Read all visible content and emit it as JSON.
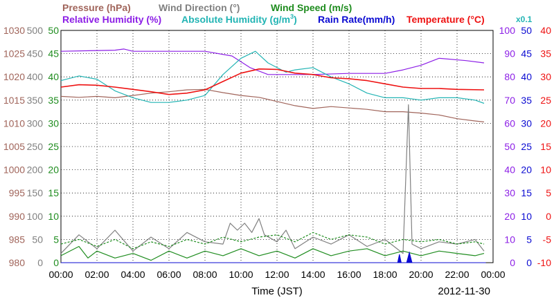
{
  "chart_data": {
    "type": "line",
    "xlabel": "Time (JST)",
    "date": "2012-11-30",
    "x_ticks": [
      "00:00",
      "02:00",
      "04:00",
      "06:00",
      "08:00",
      "10:00",
      "12:00",
      "14:00",
      "16:00",
      "18:00",
      "20:00",
      "22:00",
      "00:00"
    ],
    "grid": true,
    "axes": {
      "pressure": {
        "label": "Pressure (hPa)",
        "range": [
          980,
          1030
        ],
        "ticks": [
          "1030",
          "1025",
          "1020",
          "1015",
          "1010",
          "1005",
          "1000",
          "995",
          "990",
          "985",
          "980"
        ],
        "color": "#a0645a"
      },
      "wind_direction": {
        "label": "Wind Direction (°)",
        "range": [
          0,
          500
        ],
        "ticks": [
          "500",
          "450",
          "400",
          "350",
          "300",
          "250",
          "200",
          "150",
          "100",
          "50",
          "0"
        ],
        "color": "#808080"
      },
      "wind_speed": {
        "label": "Wind Speed (m/s)",
        "range": [
          0,
          50
        ],
        "ticks": [
          "50",
          "45",
          "40",
          "35",
          "30",
          "25",
          "20",
          "15",
          "10",
          "5",
          "0"
        ],
        "color": "#1e8c1e"
      },
      "relative_humidity": {
        "label": "Relative Humidity (%)",
        "range": [
          0,
          100
        ],
        "ticks": [
          "100",
          "90",
          "80",
          "70",
          "60",
          "50",
          "40",
          "30",
          "20",
          "10",
          "0"
        ],
        "color": "#8c1ee6"
      },
      "absolute_humidity": {
        "label_main": "Absolute Humidity (g/m",
        "label_sup": "3",
        "label_end": ")",
        "scale_note": "x0.1",
        "range": [
          0,
          50
        ],
        "ticks": [
          "50",
          "45",
          "40",
          "35",
          "30",
          "25",
          "20",
          "15",
          "10",
          "5",
          "0"
        ],
        "color": "#22b4b4"
      },
      "rain_rate": {
        "label": "Rain Rate(mm/h)",
        "range": [
          0,
          50
        ],
        "ticks": [
          "50",
          "45",
          "40",
          "35",
          "30",
          "25",
          "20",
          "15",
          "10",
          "5",
          "0"
        ],
        "color": "#0a0ad2"
      },
      "temperature": {
        "label": "Temperature (°C)",
        "range": [
          -10,
          40
        ],
        "ticks": [
          "40",
          "35",
          "30",
          "25",
          "20",
          "15",
          "10",
          "5",
          "0",
          "-5",
          "-10"
        ],
        "color": "#ee1111"
      }
    },
    "series": [
      {
        "key": "pressure",
        "color": "#a0645a",
        "points": [
          [
            0,
            1015.8
          ],
          [
            1,
            1015.6
          ],
          [
            2,
            1015.8
          ],
          [
            3,
            1015.5
          ],
          [
            4,
            1016.0
          ],
          [
            5,
            1016.5
          ],
          [
            6,
            1016.8
          ],
          [
            7,
            1017.2
          ],
          [
            8,
            1017.3
          ],
          [
            9,
            1016.6
          ],
          [
            10,
            1016.0
          ],
          [
            11,
            1015.6
          ],
          [
            12,
            1014.7
          ],
          [
            13,
            1013.8
          ],
          [
            14,
            1013.2
          ],
          [
            15,
            1013.6
          ],
          [
            16,
            1013.3
          ],
          [
            17,
            1013.0
          ],
          [
            18,
            1012.5
          ],
          [
            19,
            1012.5
          ],
          [
            20,
            1012.2
          ],
          [
            21,
            1011.8
          ],
          [
            22,
            1011.0
          ],
          [
            23,
            1010.5
          ],
          [
            23.5,
            1010.3
          ]
        ]
      },
      {
        "key": "relative_humidity",
        "color": "#8c1ee6",
        "points": [
          [
            0,
            91
          ],
          [
            3,
            91.5
          ],
          [
            3.5,
            92
          ],
          [
            4,
            91
          ],
          [
            8,
            91
          ],
          [
            9.5,
            89
          ],
          [
            10.5,
            84
          ],
          [
            11.5,
            81
          ],
          [
            14,
            81
          ],
          [
            16,
            81.5
          ],
          [
            18,
            81.5
          ],
          [
            19,
            83
          ],
          [
            20,
            85
          ],
          [
            21,
            88
          ],
          [
            22.5,
            87
          ],
          [
            23.5,
            86
          ]
        ]
      },
      {
        "key": "absolute_humidity",
        "color": "#22b4b4",
        "points": [
          [
            0,
            39.2
          ],
          [
            1,
            40.2
          ],
          [
            2,
            39.5
          ],
          [
            3,
            37
          ],
          [
            4,
            35.5
          ],
          [
            5,
            34.5
          ],
          [
            6,
            34.5
          ],
          [
            7,
            35
          ],
          [
            8,
            36
          ],
          [
            9,
            40.5
          ],
          [
            10,
            44
          ],
          [
            10.8,
            45.5
          ],
          [
            11.5,
            43
          ],
          [
            12.5,
            41
          ],
          [
            13,
            41.5
          ],
          [
            14,
            42
          ],
          [
            15,
            40
          ],
          [
            16,
            38.5
          ],
          [
            17,
            36.5
          ],
          [
            18,
            35.5
          ],
          [
            19,
            35.5
          ],
          [
            20,
            35
          ],
          [
            21,
            35.5
          ],
          [
            22,
            35.5
          ],
          [
            23,
            35
          ],
          [
            23.5,
            34.3
          ]
        ]
      },
      {
        "key": "temperature",
        "color": "#ee1111",
        "points": [
          [
            0,
            27.8
          ],
          [
            1,
            28.3
          ],
          [
            2,
            28.2
          ],
          [
            3,
            27.8
          ],
          [
            4,
            27.3
          ],
          [
            5,
            26.8
          ],
          [
            6,
            26.2
          ],
          [
            7,
            26.5
          ],
          [
            8,
            27.2
          ],
          [
            9,
            29.0
          ],
          [
            10,
            30.8
          ],
          [
            11,
            31.7
          ],
          [
            12,
            31.6
          ],
          [
            13,
            30.8
          ],
          [
            14,
            30.5
          ],
          [
            15,
            29.8
          ],
          [
            16,
            29.6
          ],
          [
            17,
            29.2
          ],
          [
            18,
            28.5
          ],
          [
            19,
            27.8
          ],
          [
            20,
            27.5
          ],
          [
            21,
            27.5
          ],
          [
            22,
            27.3
          ],
          [
            23.5,
            27.2
          ]
        ]
      },
      {
        "key": "wind_direction",
        "color": "#808080",
        "points": [
          [
            0,
            20
          ],
          [
            1,
            60
          ],
          [
            2,
            30
          ],
          [
            3,
            70
          ],
          [
            4,
            25
          ],
          [
            5,
            55
          ],
          [
            6,
            30
          ],
          [
            7,
            65
          ],
          [
            8,
            45
          ],
          [
            9,
            40
          ],
          [
            9.4,
            85
          ],
          [
            9.8,
            70
          ],
          [
            10.2,
            85
          ],
          [
            10.6,
            65
          ],
          [
            11,
            95
          ],
          [
            11.3,
            60
          ],
          [
            12,
            45
          ],
          [
            12.5,
            70
          ],
          [
            13,
            30
          ],
          [
            14,
            55
          ],
          [
            15,
            40
          ],
          [
            16,
            60
          ],
          [
            17,
            35
          ],
          [
            18,
            50
          ],
          [
            19,
            20
          ],
          [
            19.3,
            340
          ],
          [
            19.5,
            40
          ],
          [
            20,
            30
          ],
          [
            21,
            45
          ],
          [
            22,
            40
          ],
          [
            23,
            50
          ],
          [
            23.5,
            25
          ]
        ]
      },
      {
        "key": "wind_speed",
        "color": "#1e8c1e",
        "points": [
          [
            0,
            1.5
          ],
          [
            1,
            3.5
          ],
          [
            1.5,
            1
          ],
          [
            2,
            2.5
          ],
          [
            3,
            1
          ],
          [
            4,
            2
          ],
          [
            5,
            0.5
          ],
          [
            6,
            2.5
          ],
          [
            7,
            1
          ],
          [
            8,
            2.5
          ],
          [
            9,
            1.5
          ],
          [
            10,
            3
          ],
          [
            11,
            1.5
          ],
          [
            12,
            2.5
          ],
          [
            13,
            1
          ],
          [
            14,
            3
          ],
          [
            15,
            1.5
          ],
          [
            16,
            2.5
          ],
          [
            17,
            3
          ],
          [
            18,
            1.5
          ],
          [
            19,
            2.5
          ],
          [
            20,
            1.5
          ],
          [
            21,
            2.5
          ],
          [
            22,
            2
          ],
          [
            23,
            1.5
          ],
          [
            23.5,
            2
          ]
        ]
      },
      {
        "key": "wind_speed_max",
        "color": "#1e8c1e",
        "dashed": true,
        "points": [
          [
            0,
            4
          ],
          [
            1,
            5
          ],
          [
            2,
            3.5
          ],
          [
            3,
            5
          ],
          [
            4,
            3
          ],
          [
            5,
            4.5
          ],
          [
            6,
            3.5
          ],
          [
            7,
            5
          ],
          [
            8,
            4
          ],
          [
            9,
            5.5
          ],
          [
            10,
            4.5
          ],
          [
            11,
            5.5
          ],
          [
            12,
            6
          ],
          [
            13,
            4.5
          ],
          [
            14,
            6.5
          ],
          [
            15,
            5
          ],
          [
            16,
            6
          ],
          [
            17,
            5.5
          ],
          [
            18,
            4
          ],
          [
            19,
            5
          ],
          [
            20,
            4.5
          ],
          [
            21,
            5
          ],
          [
            22,
            4
          ],
          [
            23,
            4.5
          ],
          [
            23.5,
            4
          ]
        ]
      },
      {
        "key": "rain_rate",
        "color": "#0a0ad2",
        "points": [
          [
            0,
            0
          ],
          [
            18.7,
            0
          ],
          [
            18.8,
            1.8
          ],
          [
            18.9,
            0
          ],
          [
            19.2,
            0
          ],
          [
            19.35,
            2.2
          ],
          [
            19.5,
            0
          ],
          [
            23.6,
            0
          ]
        ]
      }
    ]
  }
}
